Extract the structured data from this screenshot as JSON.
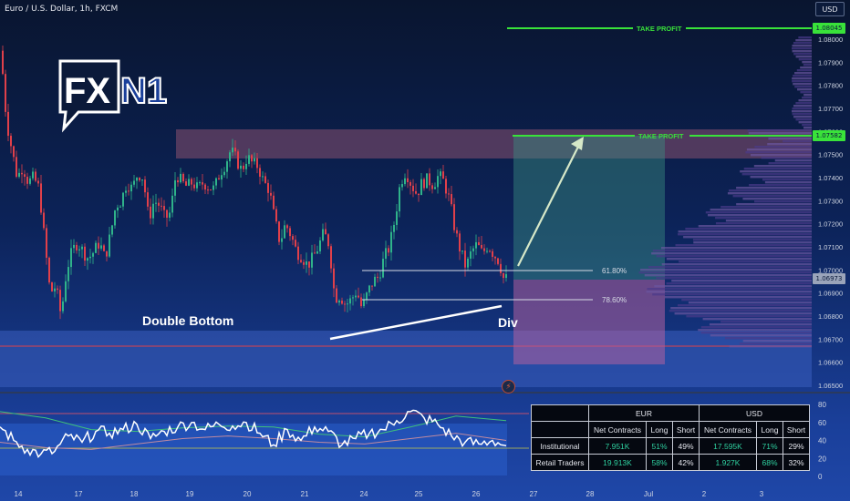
{
  "header": {
    "symbol": "Euro / U.S. Dollar, 1h, FXCM",
    "currency": "USD"
  },
  "logo": {
    "text_fx": "FX",
    "text_n1": "N1"
  },
  "annotations": {
    "double_bottom": "Double Bottom",
    "div": "Div",
    "take_profit_1": "TAKE PROFIT",
    "take_profit_2": "TAKE PROFIT",
    "fib_618": "61.80%",
    "fib_786": "78.60%"
  },
  "price_badges": {
    "tp1": "1.08045",
    "tp2": "1.07582",
    "current": "1.06973"
  },
  "colors": {
    "up": "#2fb38a",
    "down": "#e0404a",
    "take_profit": "#39e23a",
    "rsi": "#ffffff",
    "accent": "#d4d44a"
  },
  "chart_data": [
    {
      "type": "candlestick",
      "title": "Euro / U.S. Dollar, 1h, FXCM",
      "ylim": [
        1.0645,
        1.0815
      ],
      "y_ticks": [
        "1.08000",
        "1.07900",
        "1.07800",
        "1.07700",
        "1.07600",
        "1.07500",
        "1.07400",
        "1.07300",
        "1.07200",
        "1.07100",
        "1.07000",
        "1.06900",
        "1.06800",
        "1.06700",
        "1.06600",
        "1.06500"
      ],
      "x_ticks": [
        "14",
        "17",
        "18",
        "19",
        "20",
        "21",
        "24",
        "25",
        "26",
        "27",
        "28",
        "Jul",
        "2",
        "3"
      ],
      "path": [
        [
          0,
          1.0795
        ],
        [
          6,
          1.0765
        ],
        [
          12,
          1.0752
        ],
        [
          18,
          1.074
        ],
        [
          24,
          1.0745
        ],
        [
          30,
          1.0738
        ],
        [
          36,
          1.074
        ],
        [
          42,
          1.0735
        ],
        [
          48,
          1.0712
        ],
        [
          54,
          1.069
        ],
        [
          60,
          1.0693
        ],
        [
          66,
          1.068
        ],
        [
          72,
          1.07
        ],
        [
          78,
          1.0708
        ],
        [
          84,
          1.0712
        ],
        [
          90,
          1.0708
        ],
        [
          96,
          1.0705
        ],
        [
          102,
          1.0708
        ],
        [
          108,
          1.0712
        ],
        [
          114,
          1.0705
        ],
        [
          120,
          1.0715
        ],
        [
          126,
          1.0728
        ],
        [
          132,
          1.073
        ],
        [
          138,
          1.0738
        ],
        [
          144,
          1.0735
        ],
        [
          150,
          1.0742
        ],
        [
          156,
          1.074
        ],
        [
          162,
          1.0722
        ],
        [
          168,
          1.073
        ],
        [
          174,
          1.0728
        ],
        [
          180,
          1.0722
        ],
        [
          186,
          1.0725
        ],
        [
          192,
          1.0742
        ],
        [
          198,
          1.0738
        ],
        [
          204,
          1.0736
        ],
        [
          210,
          1.0738
        ],
        [
          216,
          1.0735
        ],
        [
          222,
          1.0738
        ],
        [
          228,
          1.0736
        ],
        [
          234,
          1.0735
        ],
        [
          240,
          1.0742
        ],
        [
          246,
          1.0746
        ],
        [
          252,
          1.0752
        ],
        [
          258,
          1.0748
        ],
        [
          264,
          1.0743
        ],
        [
          270,
          1.0749
        ],
        [
          276,
          1.0746
        ],
        [
          282,
          1.0745
        ],
        [
          288,
          1.0738
        ],
        [
          294,
          1.0735
        ],
        [
          300,
          1.0722
        ],
        [
          306,
          1.0712
        ],
        [
          312,
          1.072
        ],
        [
          318,
          1.0715
        ],
        [
          324,
          1.0708
        ],
        [
          330,
          1.0706
        ],
        [
          336,
          1.0702
        ],
        [
          342,
          1.0705
        ],
        [
          348,
          1.071
        ],
        [
          354,
          1.0716
        ],
        [
          360,
          1.0711
        ],
        [
          366,
          1.0688
        ],
        [
          372,
          1.0689
        ],
        [
          378,
          1.0685
        ],
        [
          384,
          1.0687
        ],
        [
          390,
          1.0691
        ],
        [
          396,
          1.0683
        ],
        [
          402,
          1.069
        ],
        [
          408,
          1.0695
        ],
        [
          414,
          1.0697
        ],
        [
          420,
          1.0705
        ],
        [
          426,
          1.071
        ],
        [
          432,
          1.0722
        ],
        [
          438,
          1.0738
        ],
        [
          444,
          1.0743
        ],
        [
          450,
          1.0737
        ],
        [
          456,
          1.0733
        ],
        [
          462,
          1.0738
        ],
        [
          468,
          1.0739
        ],
        [
          474,
          1.0737
        ],
        [
          480,
          1.0741
        ],
        [
          486,
          1.0738
        ],
        [
          492,
          1.073
        ],
        [
          498,
          1.0717
        ],
        [
          504,
          1.0708
        ],
        [
          510,
          1.0701
        ],
        [
          516,
          1.0708
        ],
        [
          522,
          1.0711
        ],
        [
          528,
          1.0707
        ],
        [
          534,
          1.0711
        ],
        [
          540,
          1.0707
        ],
        [
          546,
          1.0704
        ],
        [
          552,
          1.0695
        ],
        [
          556,
          1.06973
        ]
      ],
      "levels": [
        {
          "label": "61.80%",
          "price": 1.07
        },
        {
          "label": "78.60%",
          "price": 1.0688
        },
        {
          "label": "TAKE PROFIT",
          "price": 1.08045
        },
        {
          "label": "TAKE PROFIT",
          "price": 1.07582
        }
      ]
    },
    {
      "type": "line",
      "ylim": [
        0,
        80
      ],
      "y_ticks": [
        "80",
        "60",
        "40",
        "20",
        "0"
      ],
      "series": [
        {
          "x": [
            0,
            15,
            30,
            45,
            60,
            75,
            90,
            105,
            120,
            135,
            150,
            165,
            180,
            195,
            210,
            225,
            240,
            255,
            270,
            285,
            300,
            315,
            330,
            345,
            360,
            375,
            390,
            405,
            420,
            435,
            450,
            465,
            480,
            495,
            510,
            525,
            540,
            555
          ],
          "values": [
            55,
            40,
            30,
            25,
            28,
            45,
            38,
            50,
            48,
            52,
            58,
            42,
            50,
            55,
            60,
            52,
            58,
            56,
            60,
            48,
            35,
            52,
            40,
            55,
            50,
            35,
            42,
            48,
            52,
            62,
            72,
            65,
            58,
            45,
            38,
            36,
            40,
            34
          ]
        },
        {
          "x": [
            0,
            50,
            100,
            150,
            200,
            250,
            300,
            350,
            400,
            450,
            500,
            555
          ],
          "values": [
            72,
            65,
            52,
            50,
            54,
            56,
            55,
            47,
            44,
            55,
            67,
            62
          ]
        },
        {
          "x": [
            0,
            50,
            100,
            150,
            200,
            250,
            300,
            350,
            400,
            450,
            500,
            555
          ],
          "values": [
            38,
            32,
            30,
            36,
            42,
            45,
            42,
            38,
            36,
            42,
            48,
            40
          ]
        }
      ]
    }
  ],
  "table": {
    "headers": [
      "EUR",
      "USD"
    ],
    "subheaders": [
      "Net Contracts",
      "Long",
      "Short",
      "Net Contracts",
      "Long",
      "Short"
    ],
    "rows": [
      {
        "label": "Institutional",
        "values": [
          "7.951K",
          "51%",
          "49%",
          "17.595K",
          "71%",
          "29%"
        ]
      },
      {
        "label": "Retail Traders",
        "values": [
          "19.913K",
          "58%",
          "42%",
          "1.927K",
          "68%",
          "32%"
        ]
      }
    ]
  }
}
